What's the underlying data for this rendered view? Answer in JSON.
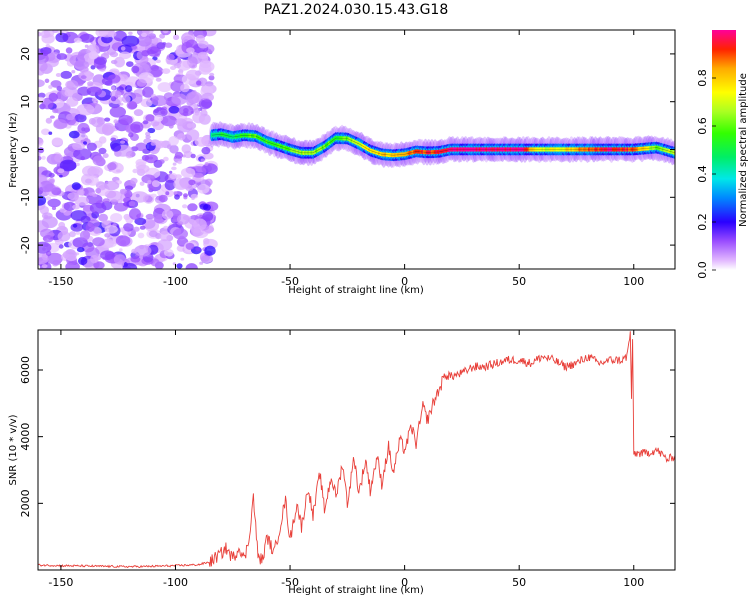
{
  "title": "PAZ1.2024.030.15.43.G18",
  "chart_data": [
    {
      "type": "heatmap",
      "title": "PAZ1.2024.030.15.43.G18",
      "xlabel": "Height of straight line (km)",
      "ylabel": "Frequency (Hz)",
      "xlim": [
        -160,
        118
      ],
      "ylim": [
        -25,
        25
      ],
      "xticks": [
        -150,
        -100,
        -50,
        0,
        50,
        100
      ],
      "yticks": [
        -20,
        -10,
        0,
        10,
        20
      ],
      "colorbar": {
        "label": "Normalized spectral amplitude",
        "range": [
          0,
          1
        ],
        "ticks": [
          0.0,
          0.2,
          0.4,
          0.6,
          0.8
        ],
        "colormap": "gist_ncar_r"
      },
      "noise_region": {
        "x_from": -160,
        "x_to": -84,
        "y_from": -25,
        "y_to": 25,
        "level": 0.15
      },
      "ridge": {
        "x": [
          -84,
          -80,
          -75,
          -70,
          -65,
          -60,
          -55,
          -50,
          -45,
          -40,
          -35,
          -30,
          -25,
          -20,
          -15,
          -10,
          -5,
          0,
          5,
          10,
          15,
          20,
          30,
          40,
          50,
          60,
          70,
          80,
          90,
          100,
          105,
          110,
          118
        ],
        "frequency": [
          3.0,
          3.2,
          2.6,
          3.0,
          2.8,
          1.6,
          0.8,
          0.0,
          -0.7,
          -0.7,
          0.6,
          2.4,
          2.3,
          1.2,
          -0.2,
          -1.0,
          -1.2,
          -1.0,
          -0.4,
          -0.6,
          -0.5,
          0.0,
          0.0,
          0.0,
          0.0,
          0.0,
          0.0,
          0.0,
          0.0,
          0.0,
          0.2,
          0.4,
          -0.7
        ],
        "amplitude": [
          0.35,
          0.5,
          0.45,
          0.55,
          0.6,
          0.55,
          0.55,
          0.6,
          0.65,
          0.65,
          0.6,
          0.55,
          0.6,
          0.7,
          0.75,
          0.8,
          0.8,
          0.85,
          0.9,
          0.9,
          0.95,
          1.0,
          1.0,
          1.0,
          1.0,
          0.7,
          0.75,
          0.9,
          0.95,
          0.9,
          0.75,
          0.6,
          0.7
        ]
      }
    },
    {
      "type": "line",
      "xlabel": "Height of straight line (km)",
      "ylabel": "SNR (10 * v/v)",
      "xlim": [
        -160,
        118
      ],
      "ylim": [
        0,
        7200
      ],
      "xticks": [
        -150,
        -100,
        -50,
        0,
        50,
        100
      ],
      "yticks": [
        2000,
        4000,
        6000
      ],
      "color": "#e8403a",
      "series": [
        {
          "x": [
            -160,
            -150,
            -140,
            -130,
            -120,
            -110,
            -100,
            -90,
            -85,
            -80,
            -78,
            -75,
            -72,
            -70,
            -68,
            -66,
            -64,
            -62,
            -60,
            -57,
            -55,
            -52,
            -50,
            -47,
            -45,
            -42,
            -40,
            -37,
            -35,
            -32,
            -30,
            -27,
            -25,
            -22,
            -20,
            -17,
            -15,
            -12,
            -10,
            -7,
            -5,
            -2,
            0,
            3,
            5,
            8,
            10,
            13,
            15,
            18,
            20,
            25,
            30,
            35,
            40,
            45,
            50,
            55,
            60,
            65,
            70,
            75,
            80,
            85,
            90,
            95,
            97,
            98.5,
            99,
            99.5,
            100,
            105,
            110,
            115,
            118
          ],
          "y": [
            150,
            130,
            120,
            110,
            100,
            110,
            130,
            160,
            240,
            500,
            650,
            350,
            700,
            300,
            900,
            2200,
            400,
            300,
            1000,
            500,
            1100,
            2100,
            900,
            2000,
            1300,
            2500,
            1600,
            2900,
            1800,
            2800,
            2200,
            3200,
            2000,
            3400,
            2300,
            3300,
            2400,
            3400,
            2600,
            3700,
            2900,
            3900,
            3600,
            4300,
            3800,
            4900,
            4500,
            5100,
            5400,
            5900,
            5800,
            5900,
            6100,
            6100,
            6200,
            6300,
            6300,
            6200,
            6400,
            6300,
            6100,
            6200,
            6400,
            6200,
            6300,
            6300,
            6400,
            7100,
            5200,
            6800,
            3500,
            3500,
            3600,
            3300,
            3450
          ]
        }
      ]
    }
  ]
}
